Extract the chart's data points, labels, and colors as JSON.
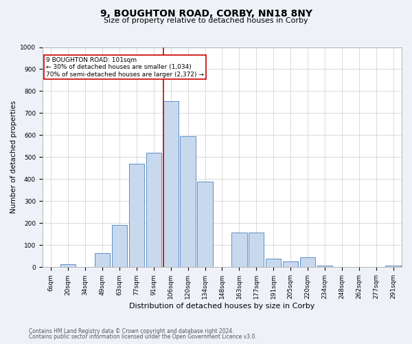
{
  "title": "9, BOUGHTON ROAD, CORBY, NN18 8NY",
  "subtitle": "Size of property relative to detached houses in Corby",
  "xlabel": "Distribution of detached houses by size in Corby",
  "ylabel": "Number of detached properties",
  "footnote1": "Contains HM Land Registry data © Crown copyright and database right 2024.",
  "footnote2": "Contains public sector information licensed under the Open Government Licence v3.0.",
  "categories": [
    "6sqm",
    "20sqm",
    "34sqm",
    "49sqm",
    "63sqm",
    "77sqm",
    "91sqm",
    "106sqm",
    "120sqm",
    "134sqm",
    "148sqm",
    "163sqm",
    "177sqm",
    "191sqm",
    "205sqm",
    "220sqm",
    "234sqm",
    "248sqm",
    "262sqm",
    "277sqm",
    "291sqm"
  ],
  "values": [
    0,
    13,
    0,
    63,
    193,
    470,
    519,
    755,
    596,
    390,
    0,
    156,
    158,
    40,
    25,
    45,
    8,
    2,
    0,
    0,
    8
  ],
  "bar_color": "#c9d9ed",
  "bar_edge_color": "#5b8fc9",
  "vline_index": 7,
  "marker_label": "9 BOUGHTON ROAD: 101sqm",
  "annotation_line1": "← 30% of detached houses are smaller (1,034)",
  "annotation_line2": "70% of semi-detached houses are larger (2,372) →",
  "vline_color": "#cc0000",
  "box_edge_color": "#cc0000",
  "ylim": [
    0,
    1000
  ],
  "yticks": [
    0,
    100,
    200,
    300,
    400,
    500,
    600,
    700,
    800,
    900,
    1000
  ],
  "bg_color": "#eef2f8",
  "plot_bg_color": "#ffffff",
  "grid_color": "#cccccc",
  "title_fontsize": 10,
  "subtitle_fontsize": 8,
  "ylabel_fontsize": 7.5,
  "xlabel_fontsize": 8,
  "tick_fontsize": 6.5,
  "annot_fontsize": 6.5,
  "footnote_fontsize": 5.5
}
